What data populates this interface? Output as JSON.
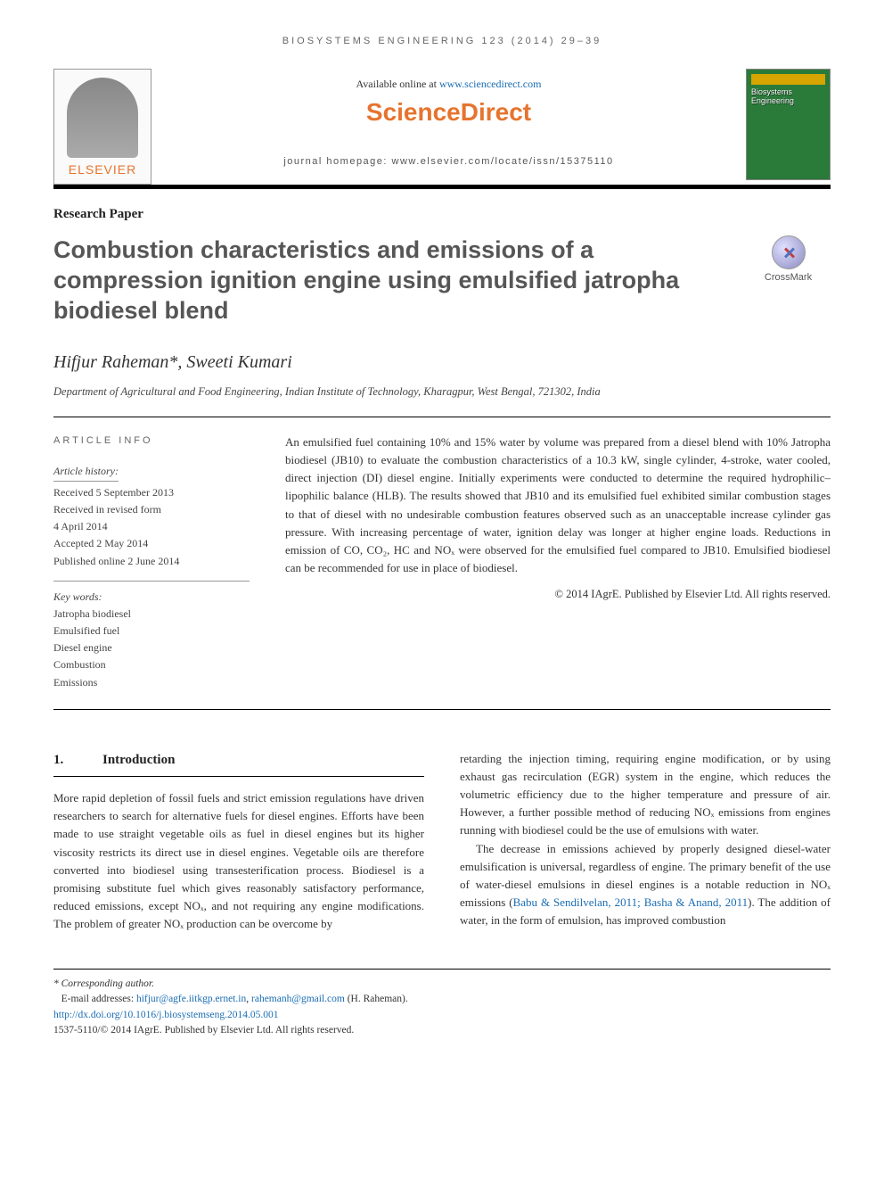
{
  "header": {
    "citation": "BIOSYSTEMS ENGINEERING 123 (2014) 29–39",
    "available_prefix": "Available online at ",
    "available_url": "www.sciencedirect.com",
    "sd_brand": "ScienceDirect",
    "homepage": "journal homepage: www.elsevier.com/locate/issn/15375110",
    "elsevier": "ELSEVIER",
    "journal_thumb": "Biosystems Engineering"
  },
  "article": {
    "type": "Research Paper",
    "title": "Combustion characteristics and emissions of a compression ignition engine using emulsified jatropha biodiesel blend",
    "crossmark": "CrossMark",
    "authors": "Hifjur Raheman*, Sweeti Kumari",
    "affiliation": "Department of Agricultural and Food Engineering, Indian Institute of Technology, Kharagpur, West Bengal, 721302, India"
  },
  "info": {
    "heading": "article info",
    "history_label": "Article history:",
    "received": "Received 5 September 2013",
    "revised1": "Received in revised form",
    "revised2": "4 April 2014",
    "accepted": "Accepted 2 May 2014",
    "published": "Published online 2 June 2014",
    "keywords_label": "Key words:",
    "kw1": "Jatropha biodiesel",
    "kw2": "Emulsified fuel",
    "kw3": "Diesel engine",
    "kw4": "Combustion",
    "kw5": "Emissions"
  },
  "abstract": {
    "text": "An emulsified fuel containing 10% and 15% water by volume was prepared from a diesel blend with 10% Jatropha biodiesel (JB10) to evaluate the combustion characteristics of a 10.3 kW, single cylinder, 4-stroke, water cooled, direct injection (DI) diesel engine. Initially experiments were conducted to determine the required hydrophilic–lipophilic balance (HLB). The results showed that JB10 and its emulsified fuel exhibited similar combustion stages to that of diesel with no undesirable combustion features observed such as an unacceptable increase cylinder gas pressure. With increasing percentage of water, ignition delay was longer at higher engine loads. Reductions in emission of CO, CO₂, HC and NOₓ were observed for the emulsified fuel compared to JB10. Emulsified biodiesel can be recommended for use in place of biodiesel.",
    "copyright": "© 2014 IAgrE. Published by Elsevier Ltd. All rights reserved."
  },
  "section1": {
    "number": "1.",
    "title": "Introduction"
  },
  "body": {
    "col1_p1": "More rapid depletion of fossil fuels and strict emission regulations have driven researchers to search for alternative fuels for diesel engines. Efforts have been made to use straight vegetable oils as fuel in diesel engines but its higher viscosity restricts its direct use in diesel engines. Vegetable oils are therefore converted into biodiesel using transesterification process. Biodiesel is a promising substitute fuel which gives reasonably satisfactory performance, reduced emissions, except NOₓ, and not requiring any engine modifications. The problem of greater NOₓ production can be overcome by",
    "col2_p1": "retarding the injection timing, requiring engine modification, or by using exhaust gas recirculation (EGR) system in the engine, which reduces the volumetric efficiency due to the higher temperature and pressure of air. However, a further possible method of reducing NOₓ emissions from engines running with biodiesel could be the use of emulsions with water.",
    "col2_p2a": "The decrease in emissions achieved by properly designed diesel-water emulsification is universal, regardless of engine. The primary benefit of the use of water-diesel emulsions in diesel engines is a notable reduction in NOₓ emissions (",
    "col2_ref": "Babu & Sendilvelan, 2011; Basha & Anand, 2011",
    "col2_p2b": "). The addition of water, in the form of emulsion, has improved combustion"
  },
  "footer": {
    "corr": "* Corresponding author.",
    "email_label": "E-mail addresses: ",
    "email1": "hifjur@agfe.iitkgp.ernet.in",
    "email_sep": ", ",
    "email2": "rahemanh@gmail.com",
    "email_suffix": " (H. Raheman).",
    "doi": "http://dx.doi.org/10.1016/j.biosystemseng.2014.05.001",
    "issn_copy": "1537-5110/© 2014 IAgrE. Published by Elsevier Ltd. All rights reserved."
  },
  "colors": {
    "orange": "#e6742e",
    "link": "#1a6db3",
    "title_gray": "#565656",
    "journal_green": "#2a7a3a"
  }
}
